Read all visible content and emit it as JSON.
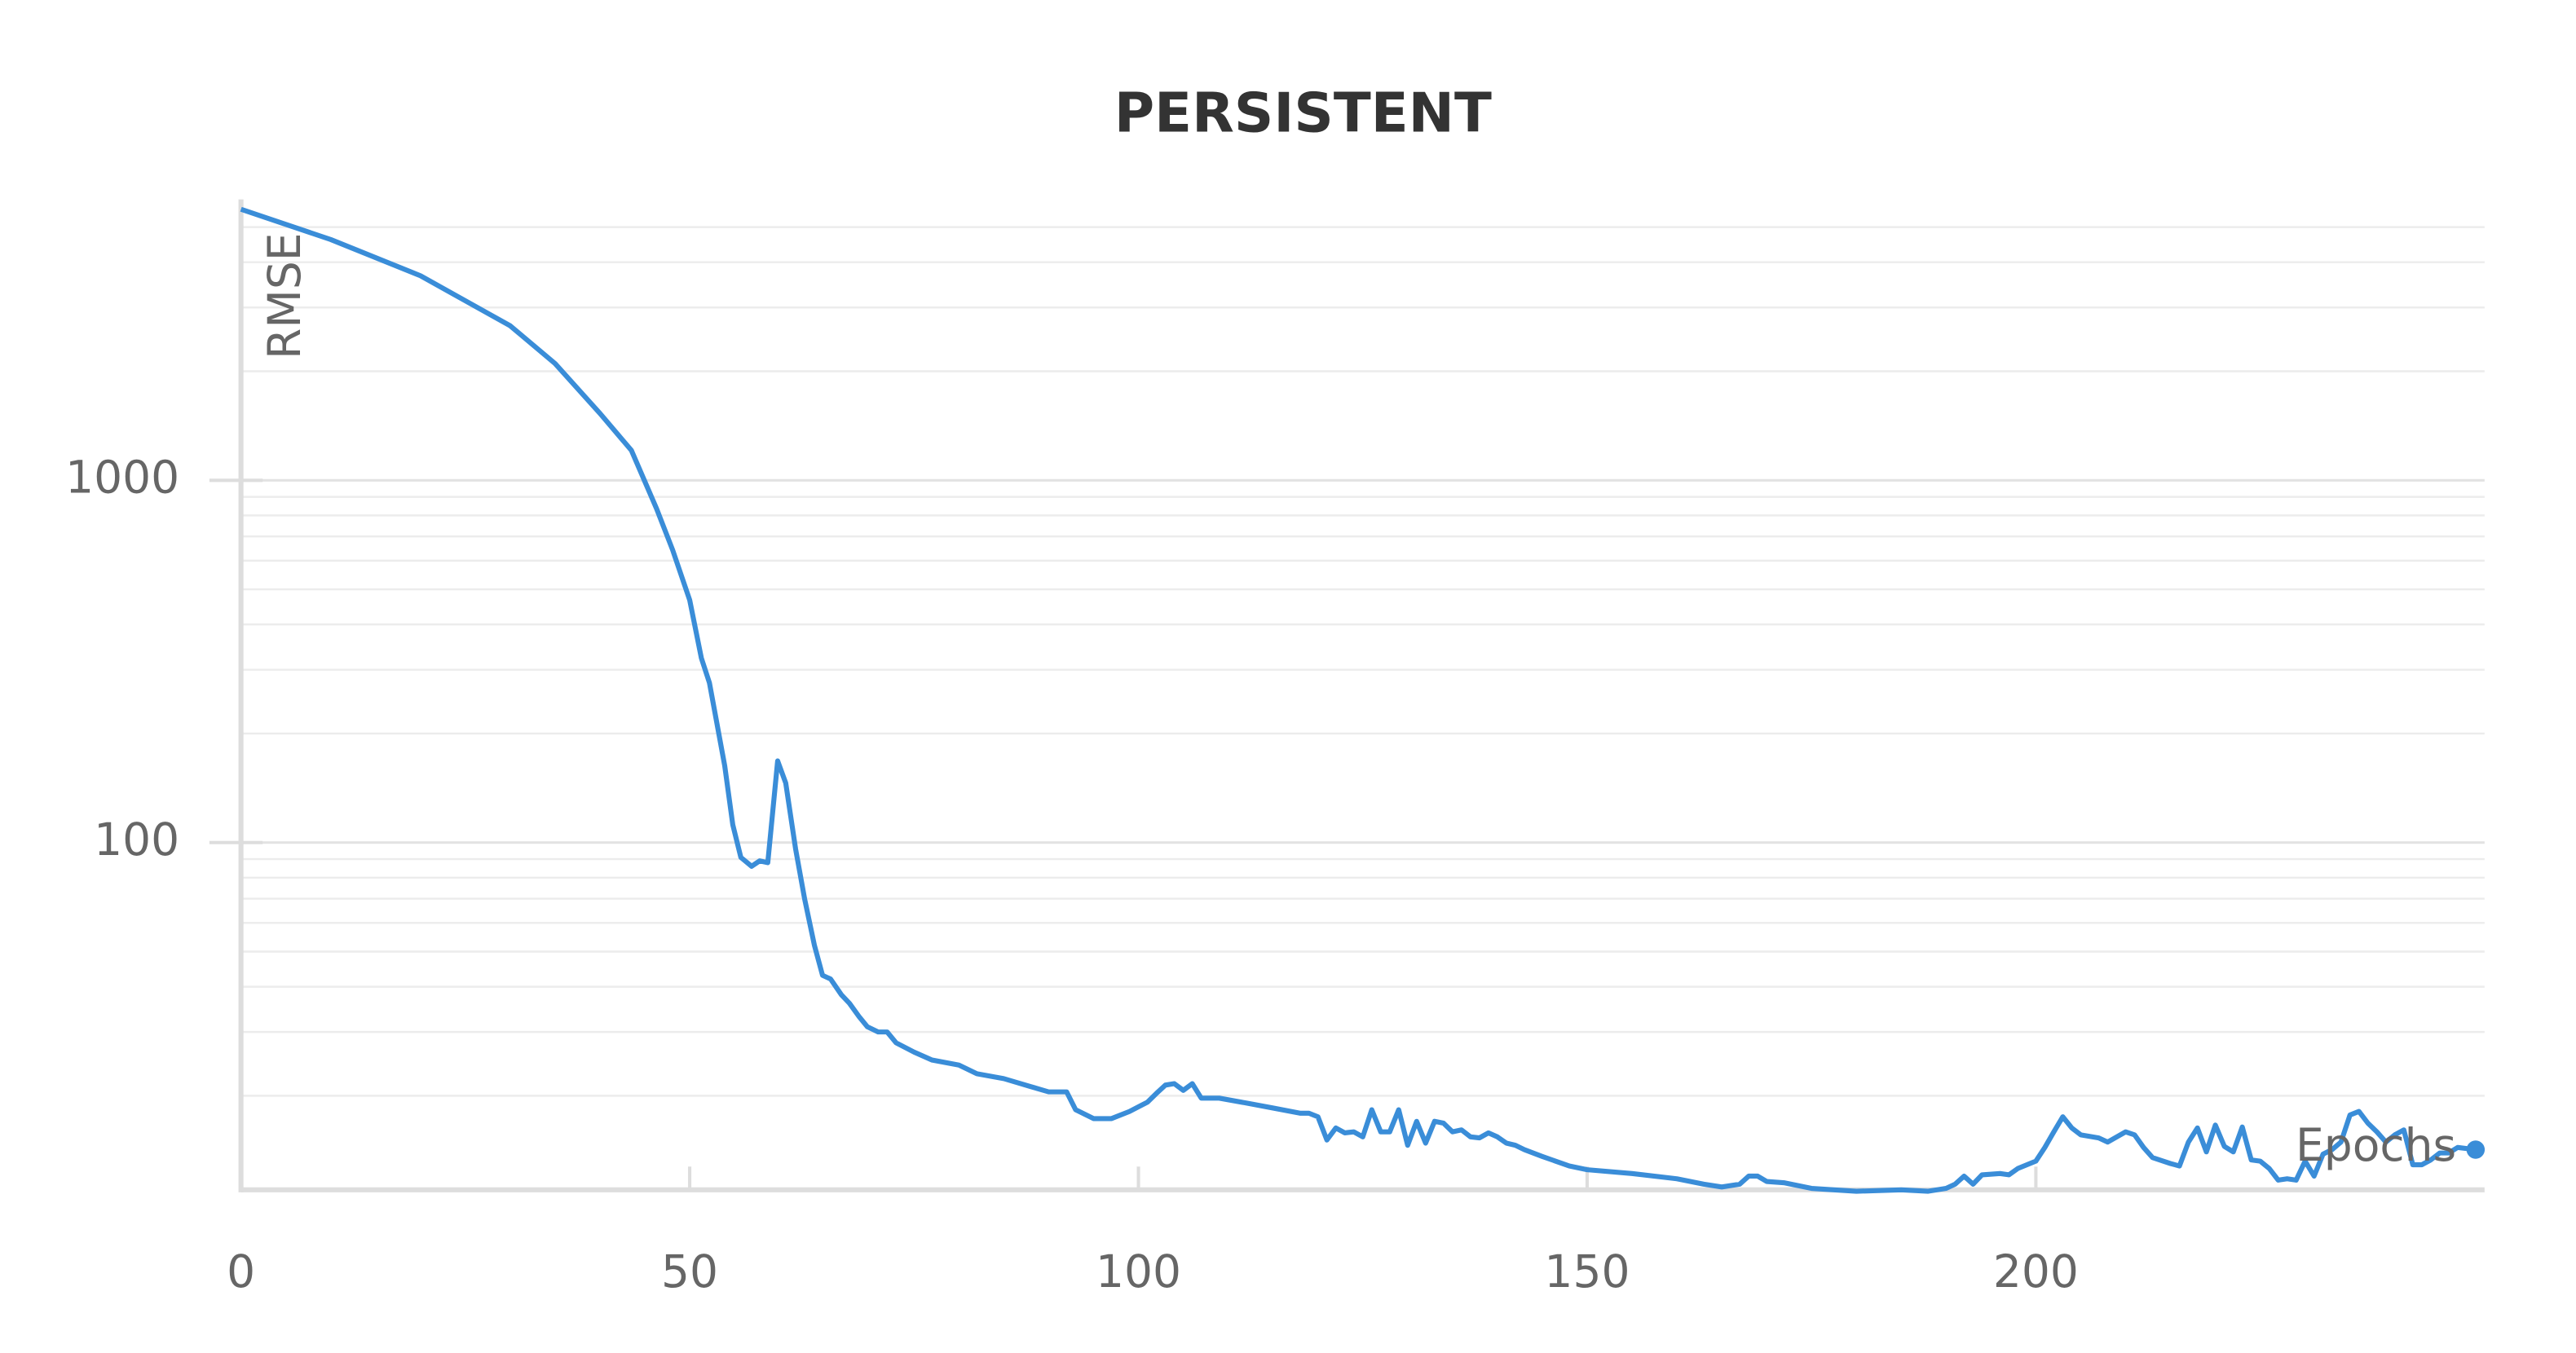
{
  "chart_data": {
    "type": "line",
    "title": "PERSISTENT",
    "x_label": "Epochs",
    "y_label": "RMSE",
    "log_y": true,
    "grid": true,
    "xlim": [
      0,
      250
    ],
    "xticks": [
      0,
      50,
      100,
      150,
      200
    ],
    "ylim": [
      11,
      6000
    ],
    "yticks": [
      100,
      1000
    ],
    "minor_yticks": [
      20,
      30,
      40,
      50,
      60,
      70,
      80,
      90,
      200,
      300,
      400,
      500,
      600,
      700,
      800,
      900,
      2000,
      3000,
      4000,
      5000
    ],
    "series": [
      {
        "name": "RMSE",
        "color": "#3a8dd8",
        "x": [
          0,
          10,
          20,
          30,
          35,
          40,
          43.5,
          46.3,
          48.1,
          50,
          51.3,
          52.2,
          53.9,
          54.8,
          55.7,
          56.9,
          57.8,
          58.7,
          59.8,
          60.7,
          61.8,
          62.8,
          63.9,
          64.8,
          65.7,
          66.9,
          67.8,
          68.9,
          69.8,
          71,
          72,
          73,
          75,
          77,
          80,
          82,
          85,
          88,
          90,
          92,
          93,
          95,
          97,
          99,
          101,
          102,
          103,
          104,
          105,
          106,
          107,
          109,
          112,
          115,
          118,
          119,
          120,
          121,
          122,
          123,
          124,
          125,
          126,
          127,
          128,
          129,
          130,
          131,
          132,
          133,
          134,
          135,
          136,
          137,
          138,
          139,
          140,
          141,
          142,
          143,
          145,
          148,
          150,
          155,
          160,
          163,
          165,
          167,
          168,
          169,
          170,
          172,
          175,
          180,
          185,
          188,
          190,
          191,
          192,
          193,
          194,
          196,
          197,
          198,
          200,
          201,
          202,
          203,
          204,
          205,
          207,
          208,
          210,
          211,
          212,
          213,
          215,
          216,
          217,
          218,
          219,
          220,
          221,
          222,
          223,
          224,
          225,
          226,
          227,
          228,
          229,
          230,
          231,
          232,
          233,
          234,
          235,
          236,
          237,
          238,
          239,
          240,
          241,
          242,
          243,
          244,
          245,
          246,
          247,
          249
        ],
        "values": [
          5600,
          4620,
          3670,
          2670,
          2100,
          1530,
          1210,
          836,
          642,
          467,
          323,
          276,
          163,
          112,
          91,
          86,
          89,
          88,
          168,
          146,
          96,
          70,
          52,
          43,
          42,
          38,
          36,
          33,
          31,
          30,
          30,
          28,
          26.4,
          25.1,
          24.3,
          23,
          22.3,
          21.2,
          20.5,
          20.5,
          18.3,
          17.3,
          17.3,
          18.1,
          19.2,
          20.3,
          21.4,
          21.6,
          20.7,
          21.6,
          19.7,
          19.7,
          19.1,
          18.5,
          17.9,
          17.9,
          17.5,
          15.1,
          16.3,
          15.8,
          15.9,
          15.4,
          18.3,
          15.9,
          15.9,
          18.3,
          14.6,
          17.0,
          14.8,
          17.0,
          16.8,
          15.9,
          16.1,
          15.4,
          15.3,
          15.8,
          15.4,
          14.8,
          14.6,
          14.2,
          13.6,
          12.8,
          12.5,
          12.2,
          11.8,
          11.4,
          11.2,
          11.4,
          12.0,
          12.0,
          11.6,
          11.5,
          11.1,
          10.9,
          11.0,
          10.9,
          11.1,
          11.4,
          12.0,
          11.4,
          12.1,
          12.2,
          12.1,
          12.6,
          13.2,
          14.4,
          15.9,
          17.5,
          16.3,
          15.6,
          15.3,
          14.9,
          15.9,
          15.6,
          14.4,
          13.5,
          13.0,
          12.8,
          14.9,
          16.3,
          14.0,
          16.6,
          14.5,
          14.0,
          16.4,
          13.3,
          13.2,
          12.6,
          11.7,
          11.8,
          11.7,
          13.2,
          12.0,
          13.8,
          14.2,
          14.9,
          17.7,
          18.1,
          16.8,
          15.9,
          14.9,
          15.6,
          16.1,
          12.9,
          12.9,
          13.3,
          13.9,
          13.9,
          14.4,
          14.2
        ]
      }
    ]
  }
}
